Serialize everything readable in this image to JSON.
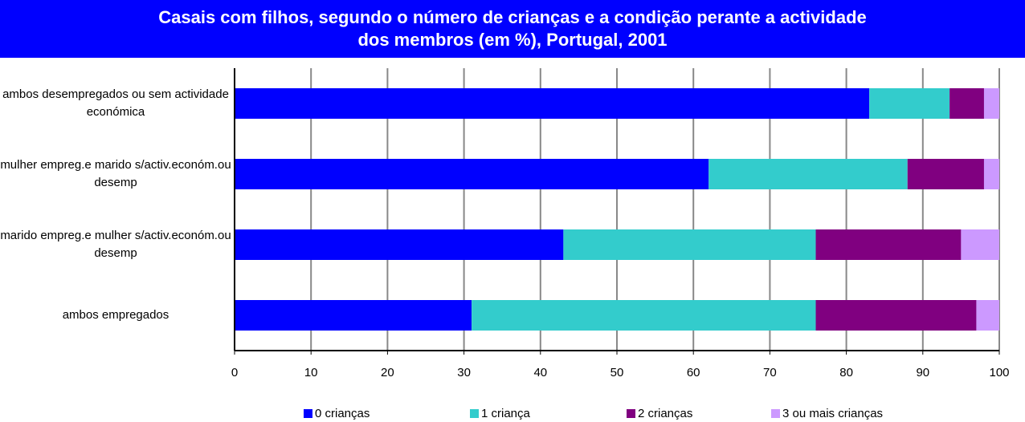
{
  "chart_data": {
    "type": "bar",
    "stacked": true,
    "orientation": "horizontal",
    "title": "Casais com filhos, segundo o número de crianças e a condição perante a actividade dos membros (em %), Portugal, 2001",
    "categories": [
      "ambos desempregados ou sem actividade económica",
      "mulher empreg.e marido s/activ.económ.ou desemp",
      "marido empreg.e mulher s/activ.económ.ou desemp",
      "ambos empregados"
    ],
    "series": [
      {
        "name": "0 crianças",
        "color": "#0000ff",
        "values": [
          83,
          62,
          43,
          31
        ]
      },
      {
        "name": "1 criança",
        "color": "#33cccc",
        "values": [
          10.5,
          26,
          33,
          45
        ]
      },
      {
        "name": "2 crianças",
        "color": "#800080",
        "values": [
          4.5,
          10,
          19,
          21
        ]
      },
      {
        "name": "3 ou mais crianças",
        "color": "#cc99ff",
        "values": [
          2,
          2,
          5,
          3
        ]
      }
    ],
    "xlim": [
      0,
      100
    ],
    "xticks": [
      0,
      10,
      20,
      30,
      40,
      50,
      60,
      70,
      80,
      90,
      100
    ],
    "grid": true,
    "legend": "bottom"
  }
}
